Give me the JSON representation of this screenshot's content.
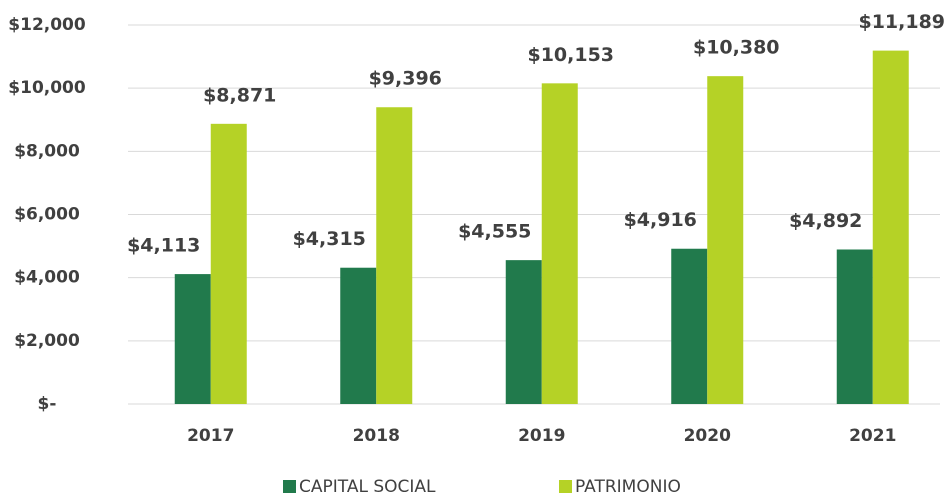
{
  "chart_data": {
    "type": "bar",
    "categories": [
      "2017",
      "2018",
      "2019",
      "2020",
      "2021"
    ],
    "series": [
      {
        "name": "CAPITAL SOCIAL",
        "color": "#217a4c",
        "values": [
          4113,
          4315,
          4555,
          4916,
          4892
        ],
        "value_labels": [
          "$4,113",
          "$4,315",
          "$4,555",
          "$4,916",
          "$4,892"
        ]
      },
      {
        "name": "PATRIMONIO",
        "color": "#b5d226",
        "values": [
          8871,
          9396,
          10153,
          10380,
          11189
        ],
        "value_labels": [
          "$8,871",
          "$9,396",
          "$10,153",
          "$10,380",
          "$11,189"
        ]
      }
    ],
    "ylim": [
      0,
      12000
    ],
    "yticks": [
      {
        "value": 0,
        "label": "$-"
      },
      {
        "value": 2000,
        "label": "$2,000"
      },
      {
        "value": 4000,
        "label": "$4,000"
      },
      {
        "value": 6000,
        "label": "$6,000"
      },
      {
        "value": 8000,
        "label": "$8,000"
      },
      {
        "value": 10000,
        "label": "$10,000"
      },
      {
        "value": 12000,
        "label": "$12,000"
      }
    ],
    "grid": true,
    "legend": "bottom"
  }
}
